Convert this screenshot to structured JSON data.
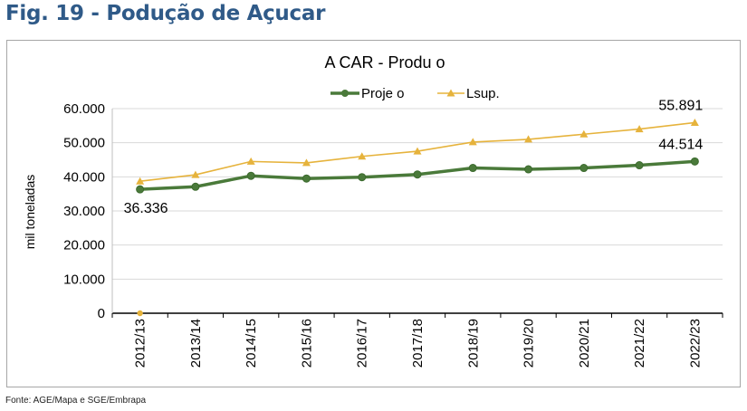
{
  "figure_title": "Fig. 19 - Podução de  Açucar",
  "source": "Fonte: AGE/Mapa e SGE/Embrapa",
  "colors": {
    "title": "#2f5a88",
    "projection_series": "#4a7a3a",
    "upper_limit_series": "#e6b33c",
    "grid": "#d9d9d9",
    "frame": "#a6a6a6"
  },
  "chart_data": {
    "type": "line",
    "title": "A     CAR - Produ     o",
    "ylabel": "mil toneladas",
    "xlabel": "",
    "ylim": [
      0,
      60000
    ],
    "yticks": [
      0,
      10000,
      20000,
      30000,
      40000,
      50000,
      60000
    ],
    "ytick_labels": [
      "0",
      "10.000",
      "20.000",
      "30.000",
      "40.000",
      "50.000",
      "60.000"
    ],
    "categories": [
      "2012/13",
      "2013/14",
      "2014/15",
      "2015/16",
      "2016/17",
      "2017/18",
      "2018/19",
      "2019/20",
      "2020/21",
      "2021/22",
      "2022/23"
    ],
    "grid": true,
    "legend_position": "top-center",
    "series": [
      {
        "name": "Proje     o",
        "marker": "circle",
        "color": "#4a7a3a",
        "values": [
          36336,
          37100,
          40300,
          39500,
          39900,
          40700,
          42600,
          42200,
          42600,
          43400,
          44514
        ]
      },
      {
        "name": "Lsup.",
        "marker": "triangle",
        "color": "#e6b33c",
        "values": [
          38700,
          40600,
          44500,
          44100,
          46000,
          47500,
          50200,
          51000,
          52500,
          54000,
          55891
        ]
      }
    ],
    "data_labels": [
      {
        "text": "36.336",
        "series": 0,
        "index": 0
      },
      {
        "text": "44.514",
        "series": 0,
        "index": 10
      },
      {
        "text": "55.891",
        "series": 1,
        "index": 10
      }
    ],
    "extra_points": [
      {
        "category": "2012/13",
        "value": 0,
        "color": "#e6b33c"
      }
    ]
  }
}
